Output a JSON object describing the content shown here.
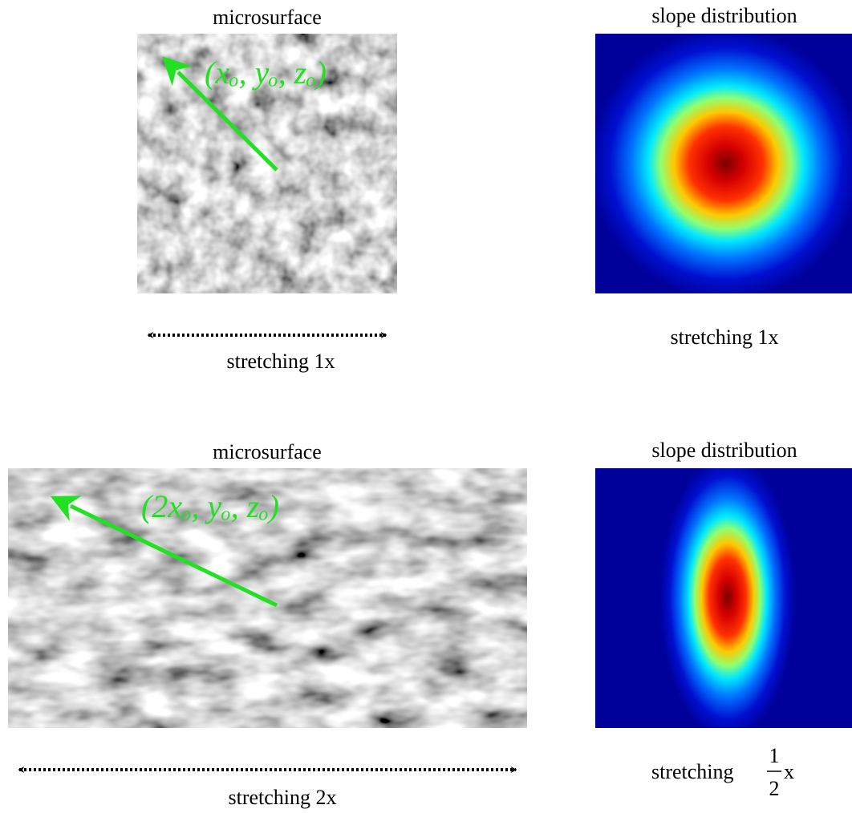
{
  "panels": [
    {
      "title": "microsurface",
      "label": "(xₒ, yₒ, zₒ)",
      "caption": "stretching 1x"
    },
    {
      "title": "slope distribution",
      "caption": "stretching 1x"
    },
    {
      "title": "microsurface",
      "label": "(2xₒ, yₒ, zₒ)",
      "caption": "stretching 2x"
    },
    {
      "title": "slope distribution",
      "caption": {
        "text": "stretching",
        "numerator": "1",
        "denominator": "2",
        "suffix": "x"
      }
    }
  ]
}
